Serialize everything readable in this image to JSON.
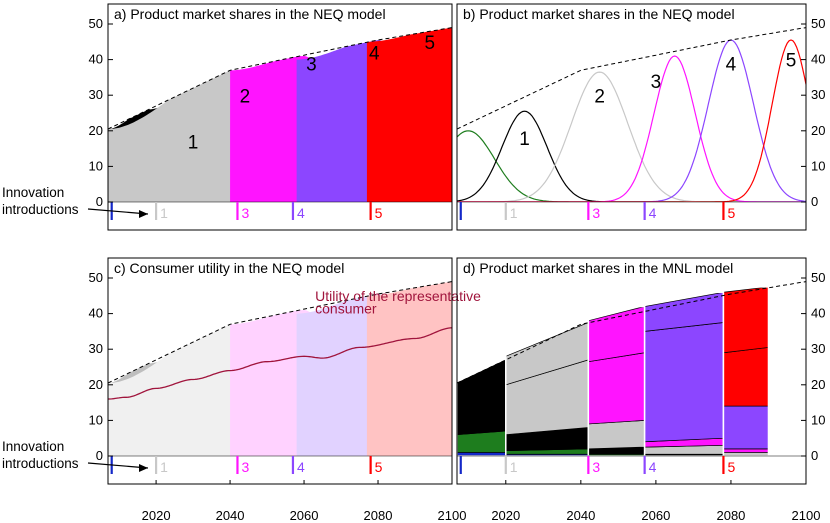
{
  "chart_data": [
    {
      "id": "a",
      "type": "area",
      "title": "a) Product market shares in the NEQ model",
      "xlim": [
        2007,
        2100
      ],
      "ylim": [
        -3,
        52
      ],
      "yticks": [
        0,
        10,
        20,
        30,
        40,
        50
      ],
      "ytick_side": "left",
      "xticks_shown": false,
      "total_envelope": [
        [
          2007,
          20.5
        ],
        [
          2040,
          37
        ],
        [
          2080,
          45.5
        ],
        [
          2100,
          49
        ]
      ],
      "series": [
        {
          "product": "blue",
          "color": "#1428c8",
          "values": [
            [
              2007,
              2.5
            ],
            [
              2009,
              2
            ],
            [
              2012,
              0.5
            ],
            [
              2014,
              0
            ]
          ]
        },
        {
          "product": "green",
          "color": "#1e7d1e",
          "values": [
            [
              2007,
              20
            ],
            [
              2012,
              19
            ],
            [
              2018,
              12
            ],
            [
              2022,
              3
            ],
            [
              2027,
              0
            ]
          ]
        },
        {
          "product": "1",
          "label": "1",
          "color": "#000000",
          "values": [
            [
              2007,
              20.5
            ],
            [
              2018,
              26
            ],
            [
              2025,
              27.5
            ],
            [
              2033,
              22
            ],
            [
              2040,
              5
            ],
            [
              2045,
              0
            ]
          ]
        },
        {
          "product": "2",
          "label": "2",
          "color": "#c8c8c8",
          "values": [
            [
              2007,
              20.5
            ],
            [
              2040,
              37
            ],
            [
              2047,
              35
            ],
            [
              2055,
              12
            ],
            [
              2062,
              0
            ]
          ]
        },
        {
          "product": "3",
          "label": "3",
          "color": "#ff14ff",
          "values": [
            [
              2040,
              37
            ],
            [
              2060,
              41
            ],
            [
              2068,
              35
            ],
            [
              2075,
              8
            ],
            [
              2080,
              0
            ]
          ]
        },
        {
          "product": "4",
          "label": "4",
          "color": "#8c46ff",
          "values": [
            [
              2058,
              40
            ],
            [
              2080,
              45.5
            ],
            [
              2088,
              40
            ],
            [
              2094,
              10
            ],
            [
              2100,
              2
            ]
          ]
        },
        {
          "product": "5",
          "label": "5",
          "color": "#ff0000",
          "values": [
            [
              2077,
              45
            ],
            [
              2100,
              49
            ]
          ]
        }
      ],
      "innovation_markers": [
        {
          "year": 2008,
          "label": "",
          "color": "#1428c8"
        },
        {
          "year": 2020,
          "label": "1",
          "color": "#c8c8c8"
        },
        {
          "year": 2042,
          "label": "3",
          "color": "#ff14ff"
        },
        {
          "year": 2057,
          "label": "4",
          "color": "#8c46ff"
        },
        {
          "year": 2078,
          "label": "5",
          "color": "#ff0000"
        }
      ],
      "annotation": [
        "Innovation",
        "introductions"
      ]
    },
    {
      "id": "b",
      "type": "line",
      "title": "b) Product market shares in the NEQ model",
      "xlim": [
        2007,
        2100
      ],
      "ylim": [
        -3,
        52
      ],
      "yticks": [
        0,
        10,
        20,
        30,
        40,
        50
      ],
      "ytick_side": "right",
      "xticks_shown": false,
      "total_envelope": [
        [
          2007,
          20.5
        ],
        [
          2040,
          37
        ],
        [
          2080,
          45.5
        ],
        [
          2100,
          49
        ]
      ],
      "series": [
        {
          "product": "green",
          "color": "#1e7d1e",
          "peak": 20,
          "peak_year": 2010,
          "sigma": 7
        },
        {
          "product": "1",
          "label": "1",
          "color": "#000000",
          "peak": 25.5,
          "peak_year": 2025,
          "sigma": 6
        },
        {
          "product": "2",
          "label": "2",
          "color": "#c8c8c8",
          "peak": 36.5,
          "peak_year": 2045,
          "sigma": 7.5
        },
        {
          "product": "3",
          "label": "3",
          "color": "#ff14ff",
          "peak": 41,
          "peak_year": 2065,
          "sigma": 5.5
        },
        {
          "product": "4",
          "label": "4",
          "color": "#8c46ff",
          "peak": 45.5,
          "peak_year": 2080,
          "sigma": 6
        },
        {
          "product": "5",
          "label": "5",
          "color": "#ff0000",
          "peak": 45.5,
          "peak_year": 2096,
          "sigma": 5
        }
      ],
      "innovation_markers": [
        {
          "year": 2008,
          "label": "",
          "color": "#1428c8"
        },
        {
          "year": 2020,
          "label": "1",
          "color": "#c8c8c8"
        },
        {
          "year": 2042,
          "label": "3",
          "color": "#ff14ff"
        },
        {
          "year": 2057,
          "label": "4",
          "color": "#8c46ff"
        },
        {
          "year": 2078,
          "label": "5",
          "color": "#ff0000"
        }
      ]
    },
    {
      "id": "c",
      "type": "area",
      "title": "c) Consumer utility in the NEQ model",
      "xlim": [
        2007,
        2100
      ],
      "ylim": [
        -3,
        52
      ],
      "yticks": [
        0,
        10,
        20,
        30,
        40,
        50
      ],
      "ytick_side": "left",
      "xticks": [
        2020,
        2040,
        2060,
        2080,
        2100
      ],
      "total_envelope": [
        [
          2007,
          20.5
        ],
        [
          2040,
          37
        ],
        [
          2080,
          45.5
        ],
        [
          2100,
          49
        ]
      ],
      "utility_label": [
        "Utility of the representative",
        "consumer"
      ],
      "utility_line": [
        [
          2007,
          16
        ],
        [
          2012,
          16.5
        ],
        [
          2020,
          19
        ],
        [
          2030,
          21.5
        ],
        [
          2040,
          24
        ],
        [
          2050,
          26.5
        ],
        [
          2060,
          28
        ],
        [
          2065,
          27.5
        ],
        [
          2075,
          30.5
        ],
        [
          2090,
          33
        ],
        [
          2100,
          36
        ]
      ],
      "series": [
        {
          "product": "green",
          "color": "#c3e6c3",
          "values": [
            [
              2007,
              20
            ],
            [
              2012,
              19
            ],
            [
              2018,
              12
            ],
            [
              2022,
              3
            ],
            [
              2027,
              0
            ]
          ]
        },
        {
          "product": "1",
          "color": "#bebebe",
          "values": [
            [
              2007,
              20.5
            ],
            [
              2018,
              26
            ],
            [
              2025,
              27.5
            ],
            [
              2033,
              22
            ],
            [
              2040,
              5
            ],
            [
              2045,
              0
            ]
          ]
        },
        {
          "product": "2",
          "color": "#f0f0f0",
          "values": [
            [
              2007,
              20.5
            ],
            [
              2040,
              37
            ],
            [
              2047,
              35
            ],
            [
              2055,
              12
            ],
            [
              2062,
              0
            ]
          ]
        },
        {
          "product": "3",
          "color": "#ffd2ff",
          "values": [
            [
              2040,
              37
            ],
            [
              2060,
              41
            ],
            [
              2068,
              35
            ],
            [
              2075,
              8
            ],
            [
              2080,
              0
            ]
          ]
        },
        {
          "product": "4",
          "color": "#e1d2ff",
          "values": [
            [
              2058,
              40
            ],
            [
              2080,
              45.5
            ],
            [
              2088,
              40
            ],
            [
              2094,
              10
            ],
            [
              2100,
              2
            ]
          ]
        },
        {
          "product": "5",
          "color": "#ffc3c3",
          "values": [
            [
              2077,
              45
            ],
            [
              2100,
              49
            ]
          ]
        }
      ],
      "innovation_markers": [
        {
          "year": 2008,
          "label": "",
          "color": "#1428c8"
        },
        {
          "year": 2020,
          "label": "1",
          "color": "#c8c8c8"
        },
        {
          "year": 2042,
          "label": "3",
          "color": "#ff14ff"
        },
        {
          "year": 2057,
          "label": "4",
          "color": "#8c46ff"
        },
        {
          "year": 2078,
          "label": "5",
          "color": "#ff0000"
        }
      ],
      "annotation": [
        "Innovation",
        "introductions"
      ]
    },
    {
      "id": "d",
      "type": "bar",
      "title": "d) Product market shares in the MNL model",
      "xlim": [
        2007,
        2100
      ],
      "ylim": [
        -3,
        52
      ],
      "yticks": [
        0,
        10,
        20,
        30,
        40,
        50
      ],
      "ytick_side": "right",
      "xticks": [
        2020,
        2040,
        2060,
        2080,
        2100
      ],
      "total_envelope": [
        [
          2007,
          20.5
        ],
        [
          2040,
          37
        ],
        [
          2080,
          45.5
        ],
        [
          2100,
          49
        ]
      ],
      "blocks": [
        {
          "x0": 2007,
          "x1": 2020,
          "top0": 20.5,
          "top1": 27,
          "layers": [
            [
              "#1428c8",
              1,
              1
            ],
            [
              "#1e7d1e",
              6,
              7
            ],
            [
              "#000000",
              13.5,
              19
            ]
          ]
        },
        {
          "x0": 2020,
          "x1": 2042,
          "top0": 28,
          "top1": 37.5,
          "layers": [
            [
              "#1428c8",
              0.5,
              0.5
            ],
            [
              "#1e7d1e",
              1.5,
              2
            ],
            [
              "#000000",
              6,
              8
            ],
            [
              "#c8c8c8",
              20,
              27
            ]
          ]
        },
        {
          "x0": 2042,
          "x1": 2057,
          "top0": 38,
          "top1": 42,
          "layers": [
            [
              "#1e7d1e",
              0.5,
              0.5
            ],
            [
              "#000000",
              2,
              2.5
            ],
            [
              "#c8c8c8",
              9,
              10
            ],
            [
              "#ff14ff",
              26.5,
              29
            ]
          ]
        },
        {
          "x0": 2057,
          "x1": 2078,
          "top0": 42,
          "top1": 46,
          "layers": [
            [
              "#000000",
              0.5,
              0.5
            ],
            [
              "#c8c8c8",
              2.5,
              3
            ],
            [
              "#ff14ff",
              4,
              5
            ],
            [
              "#8c46ff",
              35,
              37.5
            ]
          ]
        },
        {
          "x0": 2078,
          "x1": 2090,
          "top0": 46,
          "top1": 47.5,
          "layers": [
            [
              "#c8c8c8",
              1,
              1
            ],
            [
              "#ff14ff",
              2,
              2
            ],
            [
              "#8c46ff",
              14,
              14
            ],
            [
              "#ff0000",
              29,
              30.5
            ]
          ]
        }
      ],
      "innovation_markers": [
        {
          "year": 2008,
          "label": "",
          "color": "#1428c8"
        },
        {
          "year": 2020,
          "label": "1",
          "color": "#c8c8c8"
        },
        {
          "year": 2042,
          "label": "3",
          "color": "#ff14ff"
        },
        {
          "year": 2057,
          "label": "4",
          "color": "#8c46ff"
        },
        {
          "year": 2078,
          "label": "5",
          "color": "#ff0000"
        }
      ]
    }
  ]
}
